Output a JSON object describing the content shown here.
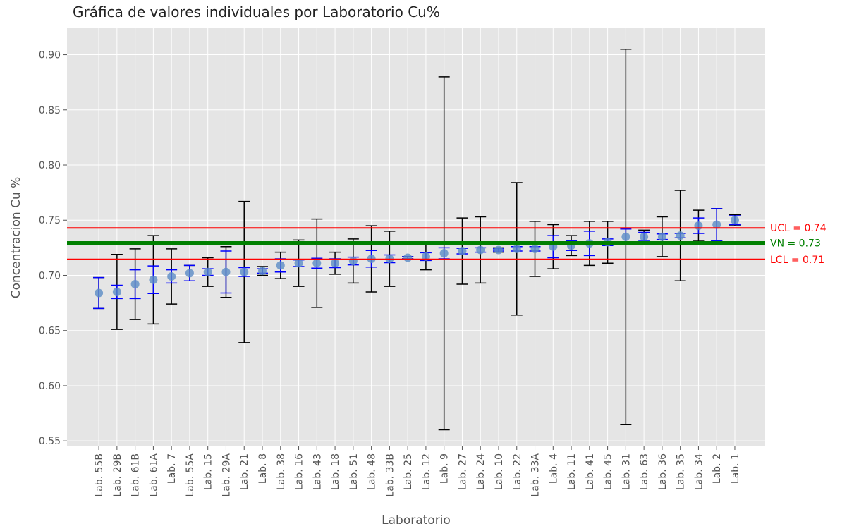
{
  "chart_data": {
    "type": "errorbar",
    "title": "Gráfica de valores individuales por Laboratorio Cu%",
    "x_label": "Laboratorio",
    "y_label": "Concentracion Cu %",
    "categories": [
      "Lab. 55B",
      "Lab. 29B",
      "Lab. 61B",
      "Lab. 61A",
      "Lab. 7",
      "Lab. 55A",
      "Lab. 15",
      "Lab. 29A",
      "Lab. 21",
      "Lab. 8",
      "Lab. 38",
      "Lab. 16",
      "Lab. 43",
      "Lab. 18",
      "Lab. 51",
      "Lab. 48",
      "Lab. 33B",
      "Lab. 25",
      "Lab. 12",
      "Lab. 9",
      "Lab. 27",
      "Lab. 24",
      "Lab. 10",
      "Lab. 22",
      "Lab. 33A",
      "Lab. 4",
      "Lab. 11",
      "Lab. 41",
      "Lab. 45",
      "Lab. 31",
      "Lab. 63",
      "Lab. 36",
      "Lab. 35",
      "Lab. 34",
      "Lab. 2",
      "Lab. 1"
    ],
    "values": [
      0.684,
      0.685,
      0.692,
      0.696,
      0.699,
      0.702,
      0.703,
      0.703,
      0.703,
      0.704,
      0.709,
      0.711,
      0.711,
      0.711,
      0.713,
      0.715,
      0.715,
      0.716,
      0.717,
      0.72,
      0.722,
      0.723,
      0.723,
      0.724,
      0.724,
      0.726,
      0.727,
      0.729,
      0.73,
      0.735,
      0.735,
      0.735,
      0.736,
      0.745,
      0.746,
      0.75
    ],
    "err_inner": [
      0.014,
      0.006,
      0.013,
      0.0125,
      0.006,
      0.007,
      0.003,
      0.019,
      0.004,
      0.002,
      0.006,
      0.003,
      0.0045,
      0.004,
      0.0035,
      0.0075,
      0.0035,
      0.001,
      0.0035,
      0.005,
      0.0025,
      0.002,
      0.001,
      0.002,
      0.002,
      0.01,
      0.0045,
      0.011,
      0.003,
      0.007,
      0.004,
      0.0025,
      0.002,
      0.007,
      0.0145,
      0.004
    ],
    "err_outer": [
      0.014,
      0.034,
      0.032,
      0.04,
      0.025,
      0.007,
      0.013,
      0.023,
      0.064,
      0.004,
      0.012,
      0.021,
      0.04,
      0.01,
      0.02,
      0.03,
      0.025,
      0.001,
      0.012,
      0.16,
      0.03,
      0.03,
      0.002,
      0.06,
      0.025,
      0.02,
      0.009,
      0.02,
      0.019,
      0.17,
      0.006,
      0.018,
      0.041,
      0.014,
      0.0145,
      0.005
    ],
    "point_color": "#5b8cc6",
    "inner_color": "#0000ff",
    "outer_color": "#000000",
    "hlines": [
      {
        "value": 0.743,
        "label": "UCL = 0.74",
        "color": "#ff0000"
      },
      {
        "value": 0.7294,
        "label": "VN = 0.73",
        "color": "#008000"
      },
      {
        "value": 0.7145,
        "label": "LCL = 0.71",
        "color": "#ff0000"
      }
    ],
    "ylim": [
      0.545,
      0.924
    ],
    "yticks": [
      0.55,
      {
        "value": 0.6,
        "label": "0.60"
      },
      0.65,
      {
        "value": 0.7,
        "label": "0.70"
      },
      0.75,
      {
        "value": 0.8,
        "label": "0.80"
      },
      0.85,
      {
        "value": 0.9,
        "label": "0.90"
      }
    ],
    "grid": true
  }
}
